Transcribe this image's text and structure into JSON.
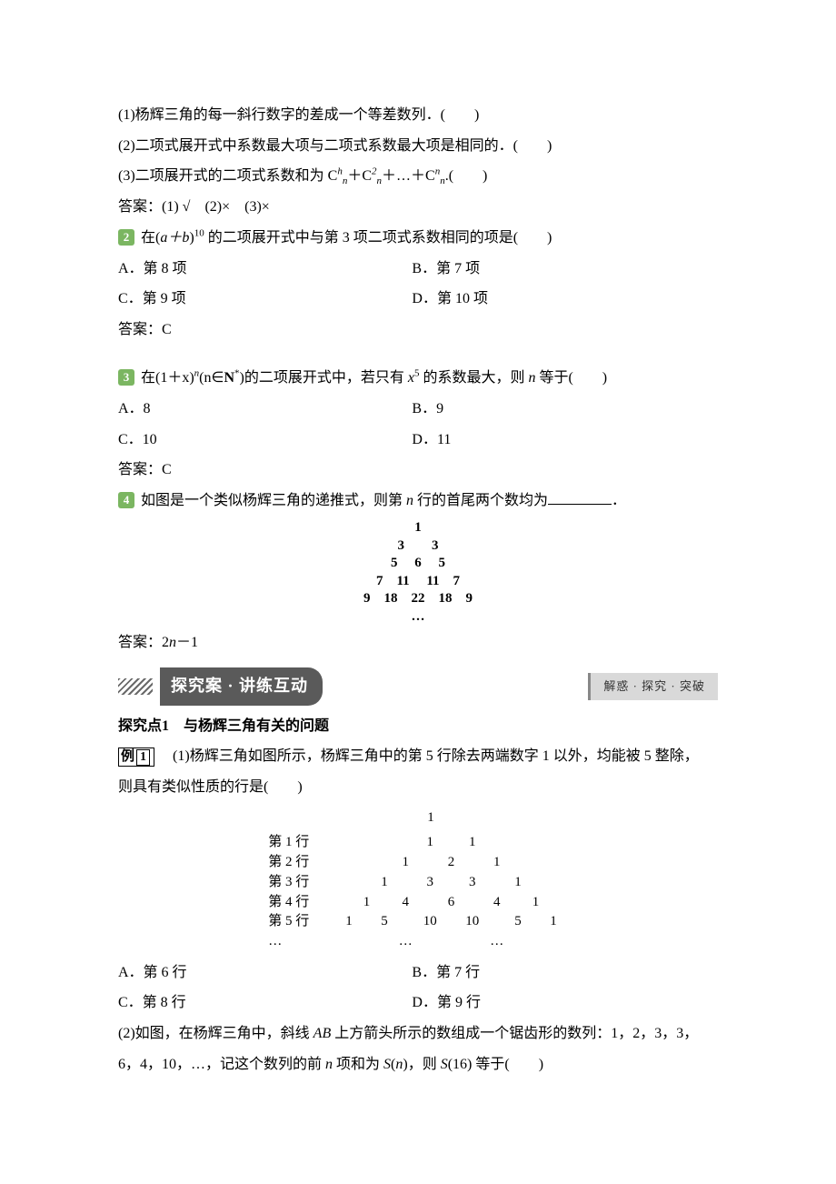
{
  "q1": {
    "s1": "(1)杨辉三角的每一斜行数字的差成一个等差数列．(　　)",
    "s2": "(2)二项式展开式中系数最大项与二项式系数最大项是相同的．(　　)",
    "s3_pre": "(3)二项展开式的二项式系数和为 C",
    "s3_mid": "＋C",
    "s3_mid2": "＋…＋C",
    "s3_post": ".(　　)",
    "answer": "答案：(1) √　(2)×　(3)×"
  },
  "q2": {
    "badge": "2",
    "stem_pre": " 在(",
    "stem_ab": "a＋b",
    "stem_post1": ")",
    "stem_exp": "10",
    "stem_post2": " 的二项展开式中与第 3 项二项式系数相同的项是(　　)",
    "optA": "A．第 8 项",
    "optB": "B．第 7 项",
    "optC": "C．第 9 项",
    "optD": "D．第 10 项",
    "answer": "答案：C"
  },
  "q3": {
    "badge": "3",
    "stem_pre": " 在(1＋x)",
    "stem_n": "n",
    "stem_mid": "(n∈",
    "stem_N": "N",
    "stem_star": "*",
    "stem_mid2": ")的二项展开式中，若只有 ",
    "stem_x": "x",
    "stem_exp5": "5",
    "stem_post": " 的系数最大，则 ",
    "stem_n2": "n",
    "stem_post2": " 等于(　　)",
    "optA": "A．8",
    "optB": "B．9",
    "optC": "C．10",
    "optD": "D．11",
    "answer": "答案：C"
  },
  "q4": {
    "badge": "4",
    "stem1": " 如图是一个类似杨辉三角的递推式，则第 ",
    "stem_n": "n",
    "stem2": " 行的首尾两个数均为",
    "stem3": "．",
    "triangle": [
      "1",
      "3　　3",
      "5　 6　 5",
      "7　11　 11　7",
      "9　18　22　18　9",
      "…"
    ],
    "answer_pre": "答案：2",
    "answer_n": "n",
    "answer_post": "－1"
  },
  "banner": {
    "main": "探究案 · 讲练互动",
    "sub": "解惑 · 探究 · 突破"
  },
  "topic": "探究点1　与杨辉三角有关的问题",
  "ex1": {
    "badge": "例 1",
    "p1": "(1)杨辉三角如图所示，杨辉三角中的第 5 行除去两端数字 1 以外，均能被 5 整除，",
    "p2": "则具有类似性质的行是(　　)",
    "triangle_top": "1",
    "rows": [
      {
        "label": "第 1 行",
        "cells": [
          "",
          "",
          "",
          "",
          "",
          "1",
          "",
          "1",
          "",
          "",
          "",
          "",
          ""
        ]
      },
      {
        "label": "第 2 行",
        "cells": [
          "",
          "",
          "",
          "",
          "1",
          "",
          "2",
          "",
          "1",
          "",
          "",
          "",
          ""
        ]
      },
      {
        "label": "第 3 行",
        "cells": [
          "",
          "",
          "",
          "1",
          "",
          "3",
          "",
          "3",
          "",
          "1",
          "",
          "",
          ""
        ]
      },
      {
        "label": "第 4 行",
        "cells": [
          "",
          "",
          "1",
          "",
          "4",
          "",
          "6",
          "",
          "4",
          "",
          "1",
          "",
          ""
        ]
      },
      {
        "label": "第 5 行",
        "cells": [
          "",
          "1",
          "",
          "5",
          "",
          "10",
          "",
          "10",
          "",
          "5",
          "",
          "1",
          ""
        ]
      },
      {
        "label": "…",
        "cells": [
          "",
          "",
          "",
          "",
          "…",
          "",
          "",
          "",
          "…",
          "",
          "",
          "",
          ""
        ]
      }
    ],
    "optA": "A．第 6 行",
    "optB": "B．第 7 行",
    "optC": "C．第 8 行",
    "optD": "D．第 9 行"
  },
  "ex1b": {
    "p1_a": "(2)如图，在杨辉三角中，斜线 ",
    "p1_AB": "AB",
    "p1_b": " 上方箭头所示的数组成一个锯齿形的数列：1，2，3，3，",
    "p2_a": "6，4，10，…，记这个数列的前 ",
    "p2_n": "n",
    "p2_b": " 项和为 ",
    "p2_S": "S",
    "p2_c": "(",
    "p2_n2": "n",
    "p2_d": ")，则 ",
    "p2_S2": "S",
    "p2_e": "(16) 等于(　　)"
  }
}
